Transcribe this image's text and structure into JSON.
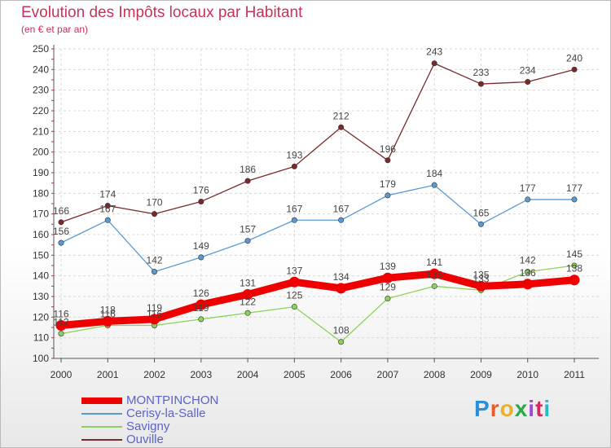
{
  "header": {
    "title": "Evolution des Impôts locaux par Habitant",
    "subtitle": "(en € et par an)"
  },
  "brand": {
    "text": "Proxiti",
    "colors": [
      "#2a8fd8",
      "#e85a2a",
      "#e8b02a",
      "#2aa84a",
      "#9a4ad8",
      "#d82a5a",
      "#2ab8c8"
    ]
  },
  "chart_data": {
    "type": "line",
    "title": "Evolution des Impôts locaux par Habitant",
    "subtitle": "(en € et par an)",
    "categories": [
      "2000",
      "2001",
      "2002",
      "2003",
      "2004",
      "2005",
      "2006",
      "2007",
      "2008",
      "2009",
      "2010",
      "2011"
    ],
    "ylim": [
      100,
      250
    ],
    "yticks": [
      100,
      110,
      120,
      130,
      140,
      150,
      160,
      170,
      180,
      190,
      200,
      210,
      220,
      230,
      240,
      250
    ],
    "grid": true,
    "legend_position": "bottom-left",
    "series": [
      {
        "name": "MONTPINCHON",
        "color": "#ee0000",
        "thick": true,
        "values": [
          116,
          118,
          119,
          126,
          131,
          137,
          134,
          139,
          141,
          135,
          136,
          138
        ],
        "labels": [
          "116",
          "118",
          "119",
          "126",
          "131",
          "137",
          "134",
          "139",
          "141",
          "135",
          "136",
          "138"
        ]
      },
      {
        "name": "Cerisy-la-Salle",
        "color": "#5a9ad2",
        "thick": false,
        "values": [
          156,
          167,
          142,
          149,
          157,
          167,
          167,
          179,
          184,
          165,
          177,
          177
        ],
        "labels": [
          "156",
          "167",
          "142",
          "149",
          "157",
          "167",
          "167",
          "179",
          "184",
          "165",
          "177",
          "177"
        ]
      },
      {
        "name": "Savigny",
        "color": "#8cd25a",
        "thick": false,
        "values": [
          112,
          116,
          116,
          119,
          122,
          125,
          108,
          129,
          135,
          133,
          142,
          145
        ],
        "labels": [
          "112",
          "116",
          "116",
          "119",
          "122",
          "125",
          "108",
          "129",
          "135",
          "133",
          "142",
          "145"
        ]
      },
      {
        "name": "Ouville",
        "color": "#7a2a2a",
        "thick": false,
        "values": [
          166,
          174,
          170,
          176,
          186,
          193,
          212,
          196,
          243,
          233,
          234,
          240
        ],
        "labels": [
          "166",
          "174",
          "170",
          "176",
          "186",
          "193",
          "212",
          "196",
          "243",
          "233",
          "234",
          "240"
        ]
      }
    ]
  }
}
